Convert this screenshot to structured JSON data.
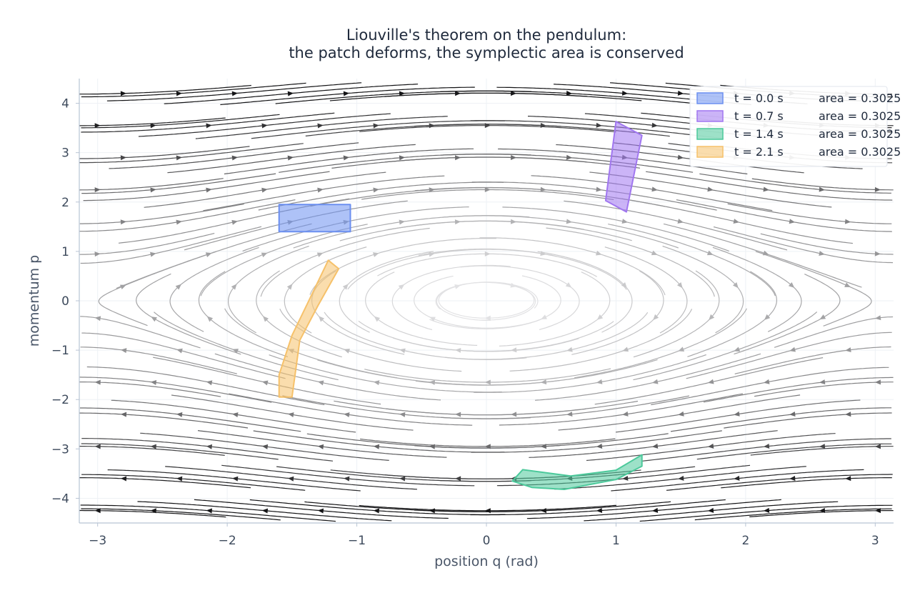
{
  "chart_data": {
    "type": "streamplot",
    "title_lines": [
      "Liouville's theorem on the pendulum:",
      "the patch deforms, the symplectic area is conserved"
    ],
    "xlabel": "position q (rad)",
    "ylabel": "momentum p",
    "xlim": [
      -3.14159,
      3.14159
    ],
    "ylim": [
      -4.5,
      4.5
    ],
    "xticks": [
      -3,
      -2,
      -1,
      0,
      1,
      2,
      3
    ],
    "xtick_labels": [
      "−3",
      "−2",
      "−1",
      "0",
      "1",
      "2",
      "3"
    ],
    "yticks": [
      -4,
      -3,
      -2,
      -1,
      0,
      1,
      2,
      3,
      4
    ],
    "ytick_labels": [
      "−4",
      "−3",
      "−2",
      "−1",
      "0",
      "1",
      "2",
      "3",
      "4"
    ],
    "grid": true,
    "legend_position": "top-right",
    "vector_field": "dq/dt = p, dp/dt = −sin q",
    "patches": [
      {
        "time": "t = 0.0 s",
        "area_label": "area = 0.3025",
        "color": "#6b8ff0",
        "points": [
          [
            -1.6,
            1.4
          ],
          [
            -1.05,
            1.4
          ],
          [
            -1.05,
            1.95
          ],
          [
            -1.6,
            1.95
          ]
        ]
      },
      {
        "time": "t = 0.7 s",
        "area_label": "area = 0.3025",
        "color": "#a177f0",
        "points": [
          [
            0.92,
            2.03
          ],
          [
            1.08,
            1.8
          ],
          [
            1.2,
            3.35
          ],
          [
            1.0,
            3.63
          ]
        ]
      },
      {
        "time": "t = 1.4 s",
        "area_label": "area = 0.3025",
        "color": "#4cc99b",
        "points": [
          [
            0.2,
            -3.65
          ],
          [
            0.28,
            -3.42
          ],
          [
            0.65,
            -3.55
          ],
          [
            1.0,
            -3.43
          ],
          [
            1.2,
            -3.12
          ],
          [
            1.2,
            -3.35
          ],
          [
            1.0,
            -3.62
          ],
          [
            0.6,
            -3.82
          ],
          [
            0.35,
            -3.78
          ]
        ]
      },
      {
        "time": "t = 2.1 s",
        "area_label": "area = 0.3025",
        "color": "#f6c16a",
        "points": [
          [
            -1.6,
            -1.95
          ],
          [
            -1.6,
            -1.5
          ],
          [
            -1.5,
            -0.7
          ],
          [
            -1.38,
            -0.05
          ],
          [
            -1.22,
            0.82
          ],
          [
            -1.14,
            0.65
          ],
          [
            -1.3,
            -0.1
          ],
          [
            -1.44,
            -0.8
          ],
          [
            -1.5,
            -1.95
          ]
        ]
      }
    ]
  },
  "colors": {
    "axis": "#b8c4d4",
    "grid": "#eef1f5",
    "title": "#1f2a3c",
    "tick_text": "#3d4a5c"
  }
}
